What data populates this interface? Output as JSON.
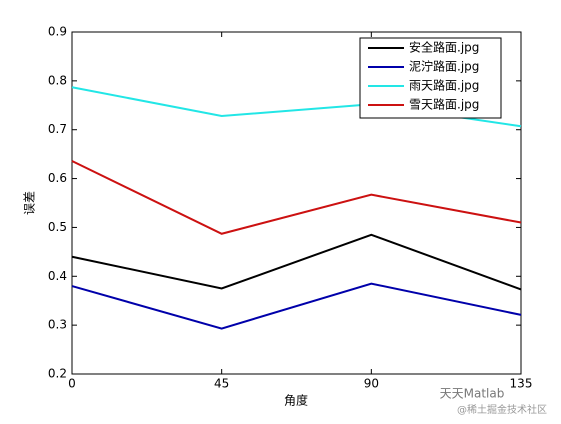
{
  "chart_data": {
    "type": "line",
    "xlabel": "角度",
    "ylabel": "误差",
    "x": [
      0,
      45,
      90,
      135
    ],
    "series": [
      {
        "name": "安全路面.jpg",
        "color": "#000000",
        "values": [
          0.44,
          0.375,
          0.485,
          0.373
        ]
      },
      {
        "name": "泥泞路面.jpg",
        "color": "#0000aa",
        "values": [
          0.38,
          0.293,
          0.385,
          0.321
        ]
      },
      {
        "name": "雨天路面.jpg",
        "color": "#22e6e6",
        "values": [
          0.787,
          0.728,
          0.752,
          0.707
        ]
      },
      {
        "name": "雪天路面.jpg",
        "color": "#cc1111",
        "values": [
          0.636,
          0.487,
          0.567,
          0.51
        ]
      }
    ],
    "xlim": [
      0,
      135
    ],
    "xticks": [
      0,
      45,
      90,
      135
    ],
    "ylim": [
      0.2,
      0.9
    ],
    "yticks": [
      0.2,
      0.3,
      0.4,
      0.5,
      0.6,
      0.7,
      0.8,
      0.9
    ],
    "grid": false,
    "legend": "northeast",
    "watermark": [
      "天天Matlab",
      "@稀土掘金技术社区"
    ]
  }
}
